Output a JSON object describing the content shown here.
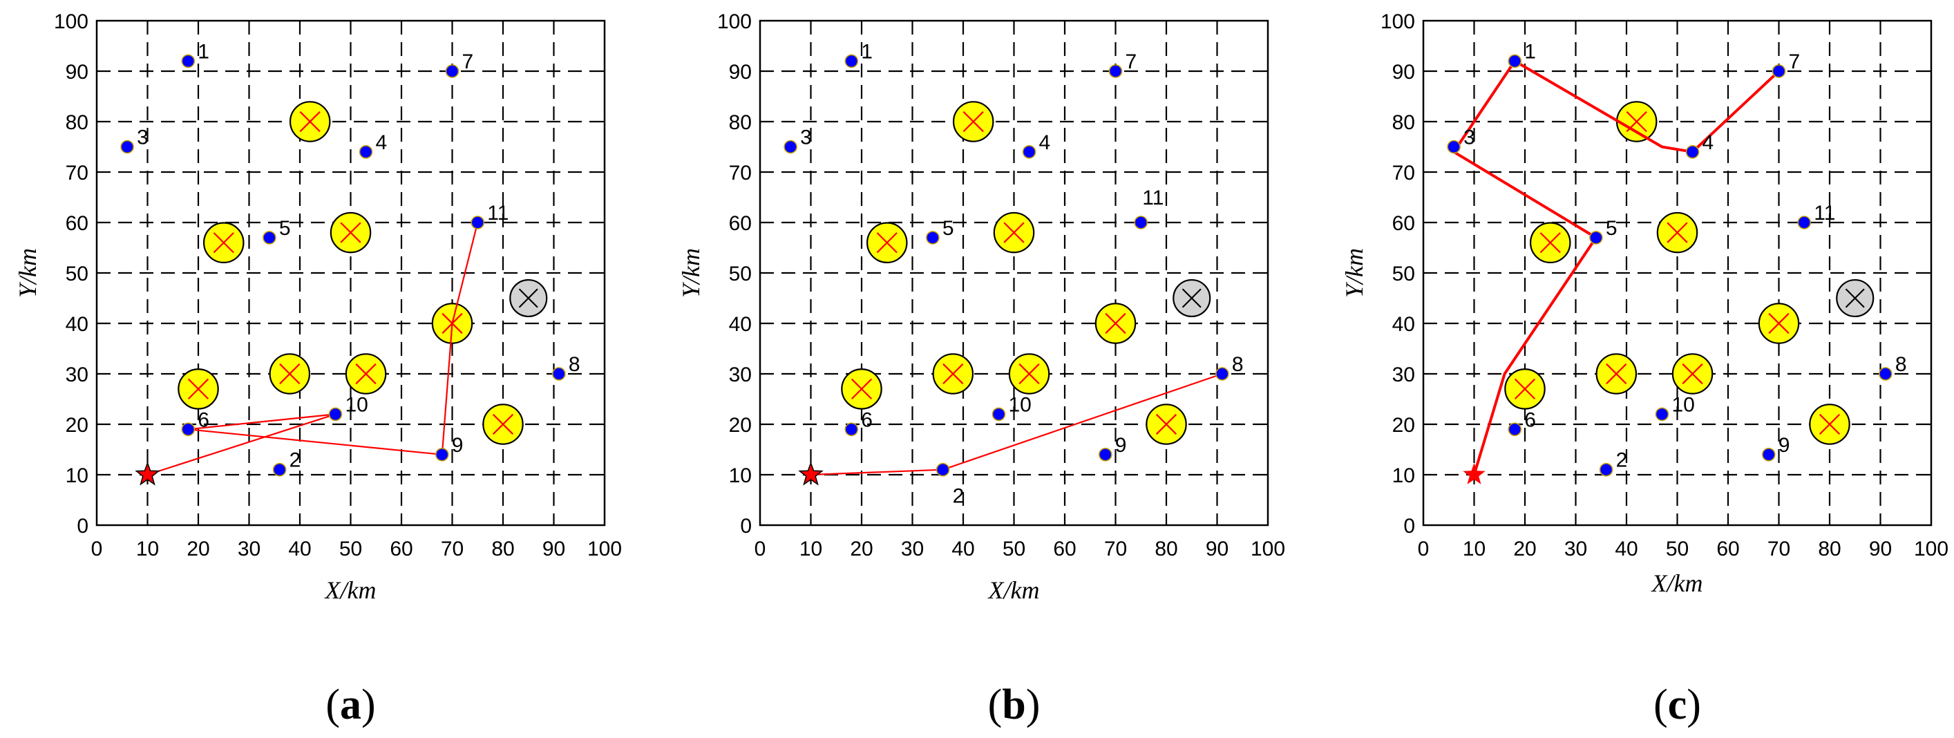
{
  "chart_data": [
    {
      "type": "scatter",
      "panel_label": "a",
      "caption": {
        "open": "(",
        "label": "a",
        "close": ")"
      },
      "xlabel": "X/km",
      "ylabel": "Y/km",
      "xlim": [
        0,
        100
      ],
      "ylim": [
        0,
        100
      ],
      "xticks": [
        0,
        10,
        20,
        30,
        40,
        50,
        60,
        70,
        80,
        90,
        100
      ],
      "yticks": [
        0,
        10,
        20,
        30,
        40,
        50,
        60,
        70,
        80,
        90,
        100
      ],
      "grid": "dashed",
      "depot": {
        "x": 10,
        "y": 10
      },
      "customers": [
        {
          "id": "1",
          "x": 18,
          "y": 92
        },
        {
          "id": "2",
          "x": 36,
          "y": 11
        },
        {
          "id": "3",
          "x": 6,
          "y": 75
        },
        {
          "id": "4",
          "x": 53,
          "y": 74
        },
        {
          "id": "5",
          "x": 34,
          "y": 57
        },
        {
          "id": "6",
          "x": 18,
          "y": 19
        },
        {
          "id": "7",
          "x": 70,
          "y": 90
        },
        {
          "id": "8",
          "x": 91,
          "y": 30
        },
        {
          "id": "9",
          "x": 68,
          "y": 14
        },
        {
          "id": "10",
          "x": 47,
          "y": 22
        },
        {
          "id": "11",
          "x": 75,
          "y": 60
        }
      ],
      "obstacles": [
        {
          "x": 42,
          "y": 80
        },
        {
          "x": 25,
          "y": 56
        },
        {
          "x": 50,
          "y": 58
        },
        {
          "x": 70,
          "y": 40
        },
        {
          "x": 20,
          "y": 27
        },
        {
          "x": 38,
          "y": 30
        },
        {
          "x": 53,
          "y": 30
        },
        {
          "x": 80,
          "y": 20
        }
      ],
      "inactive_obstacles": [
        {
          "x": 85,
          "y": 45
        }
      ],
      "route": {
        "width": "thin",
        "points": [
          [
            10,
            10
          ],
          [
            47,
            22
          ],
          [
            18,
            19
          ],
          [
            68,
            14
          ],
          [
            70,
            40
          ],
          [
            75,
            60
          ]
        ]
      }
    },
    {
      "type": "scatter",
      "panel_label": "b",
      "caption": {
        "open": "(",
        "label": "b",
        "close": ")"
      },
      "xlabel": "X/km",
      "ylabel": "Y/km",
      "xlim": [
        0,
        100
      ],
      "ylim": [
        0,
        100
      ],
      "xticks": [
        0,
        10,
        20,
        30,
        40,
        50,
        60,
        70,
        80,
        90,
        100
      ],
      "yticks": [
        0,
        10,
        20,
        30,
        40,
        50,
        60,
        70,
        80,
        90,
        100
      ],
      "grid": "dashed",
      "depot": {
        "x": 10,
        "y": 10
      },
      "customers": [
        {
          "id": "1",
          "x": 18,
          "y": 92
        },
        {
          "id": "2",
          "x": 36,
          "y": 11,
          "label_below": true
        },
        {
          "id": "3",
          "x": 6,
          "y": 75
        },
        {
          "id": "4",
          "x": 53,
          "y": 74
        },
        {
          "id": "5",
          "x": 34,
          "y": 57
        },
        {
          "id": "6",
          "x": 18,
          "y": 19
        },
        {
          "id": "7",
          "x": 70,
          "y": 90
        },
        {
          "id": "8",
          "x": 91,
          "y": 30
        },
        {
          "id": "9",
          "x": 68,
          "y": 14
        },
        {
          "id": "10",
          "x": 47,
          "y": 22
        },
        {
          "id": "11",
          "x": 75,
          "y": 60,
          "label_above": true
        }
      ],
      "obstacles": [
        {
          "x": 42,
          "y": 80
        },
        {
          "x": 25,
          "y": 56
        },
        {
          "x": 50,
          "y": 58
        },
        {
          "x": 70,
          "y": 40
        },
        {
          "x": 20,
          "y": 27
        },
        {
          "x": 38,
          "y": 30
        },
        {
          "x": 53,
          "y": 30
        },
        {
          "x": 80,
          "y": 20
        }
      ],
      "inactive_obstacles": [
        {
          "x": 85,
          "y": 45
        }
      ],
      "route": {
        "width": "thin",
        "points": [
          [
            10,
            10
          ],
          [
            36,
            11
          ],
          [
            91,
            30
          ]
        ]
      }
    },
    {
      "type": "scatter",
      "panel_label": "c",
      "caption": {
        "open": "(",
        "label": "c",
        "close": ")"
      },
      "xlabel": "X/km",
      "ylabel": "Y/km",
      "xlim": [
        0,
        100
      ],
      "ylim": [
        0,
        100
      ],
      "xticks": [
        0,
        10,
        20,
        30,
        40,
        50,
        60,
        70,
        80,
        90,
        100
      ],
      "yticks": [
        0,
        10,
        20,
        30,
        40,
        50,
        60,
        70,
        80,
        90,
        100
      ],
      "grid": "dashed",
      "depot": {
        "x": 10,
        "y": 10
      },
      "customers": [
        {
          "id": "1",
          "x": 18,
          "y": 92
        },
        {
          "id": "2",
          "x": 36,
          "y": 11
        },
        {
          "id": "3",
          "x": 6,
          "y": 75
        },
        {
          "id": "4",
          "x": 53,
          "y": 74
        },
        {
          "id": "5",
          "x": 34,
          "y": 57
        },
        {
          "id": "6",
          "x": 18,
          "y": 19
        },
        {
          "id": "7",
          "x": 70,
          "y": 90
        },
        {
          "id": "8",
          "x": 91,
          "y": 30
        },
        {
          "id": "9",
          "x": 68,
          "y": 14
        },
        {
          "id": "10",
          "x": 47,
          "y": 22
        },
        {
          "id": "11",
          "x": 75,
          "y": 60
        }
      ],
      "obstacles": [
        {
          "x": 42,
          "y": 80
        },
        {
          "x": 25,
          "y": 56
        },
        {
          "x": 50,
          "y": 58
        },
        {
          "x": 70,
          "y": 40
        },
        {
          "x": 20,
          "y": 27
        },
        {
          "x": 38,
          "y": 30
        },
        {
          "x": 53,
          "y": 30
        },
        {
          "x": 80,
          "y": 20
        }
      ],
      "inactive_obstacles": [
        {
          "x": 85,
          "y": 45
        }
      ],
      "route": {
        "width": "thick",
        "points": [
          [
            10,
            10
          ],
          [
            16,
            30
          ],
          [
            34,
            57
          ],
          [
            6,
            74
          ],
          [
            18,
            92
          ],
          [
            47,
            75
          ],
          [
            53,
            74
          ],
          [
            70,
            90
          ]
        ]
      }
    }
  ],
  "colors": {
    "route": "#ff0000",
    "customer_fill": "#0000ff",
    "customer_edge": "#c8a000",
    "obstacle_fill": "#ffff00",
    "obstacle_cross": "#ff0000",
    "inactive_fill": "#d3d3d3",
    "inactive_cross": "#000000",
    "depot": "#ff0000",
    "grid": "#000000"
  }
}
